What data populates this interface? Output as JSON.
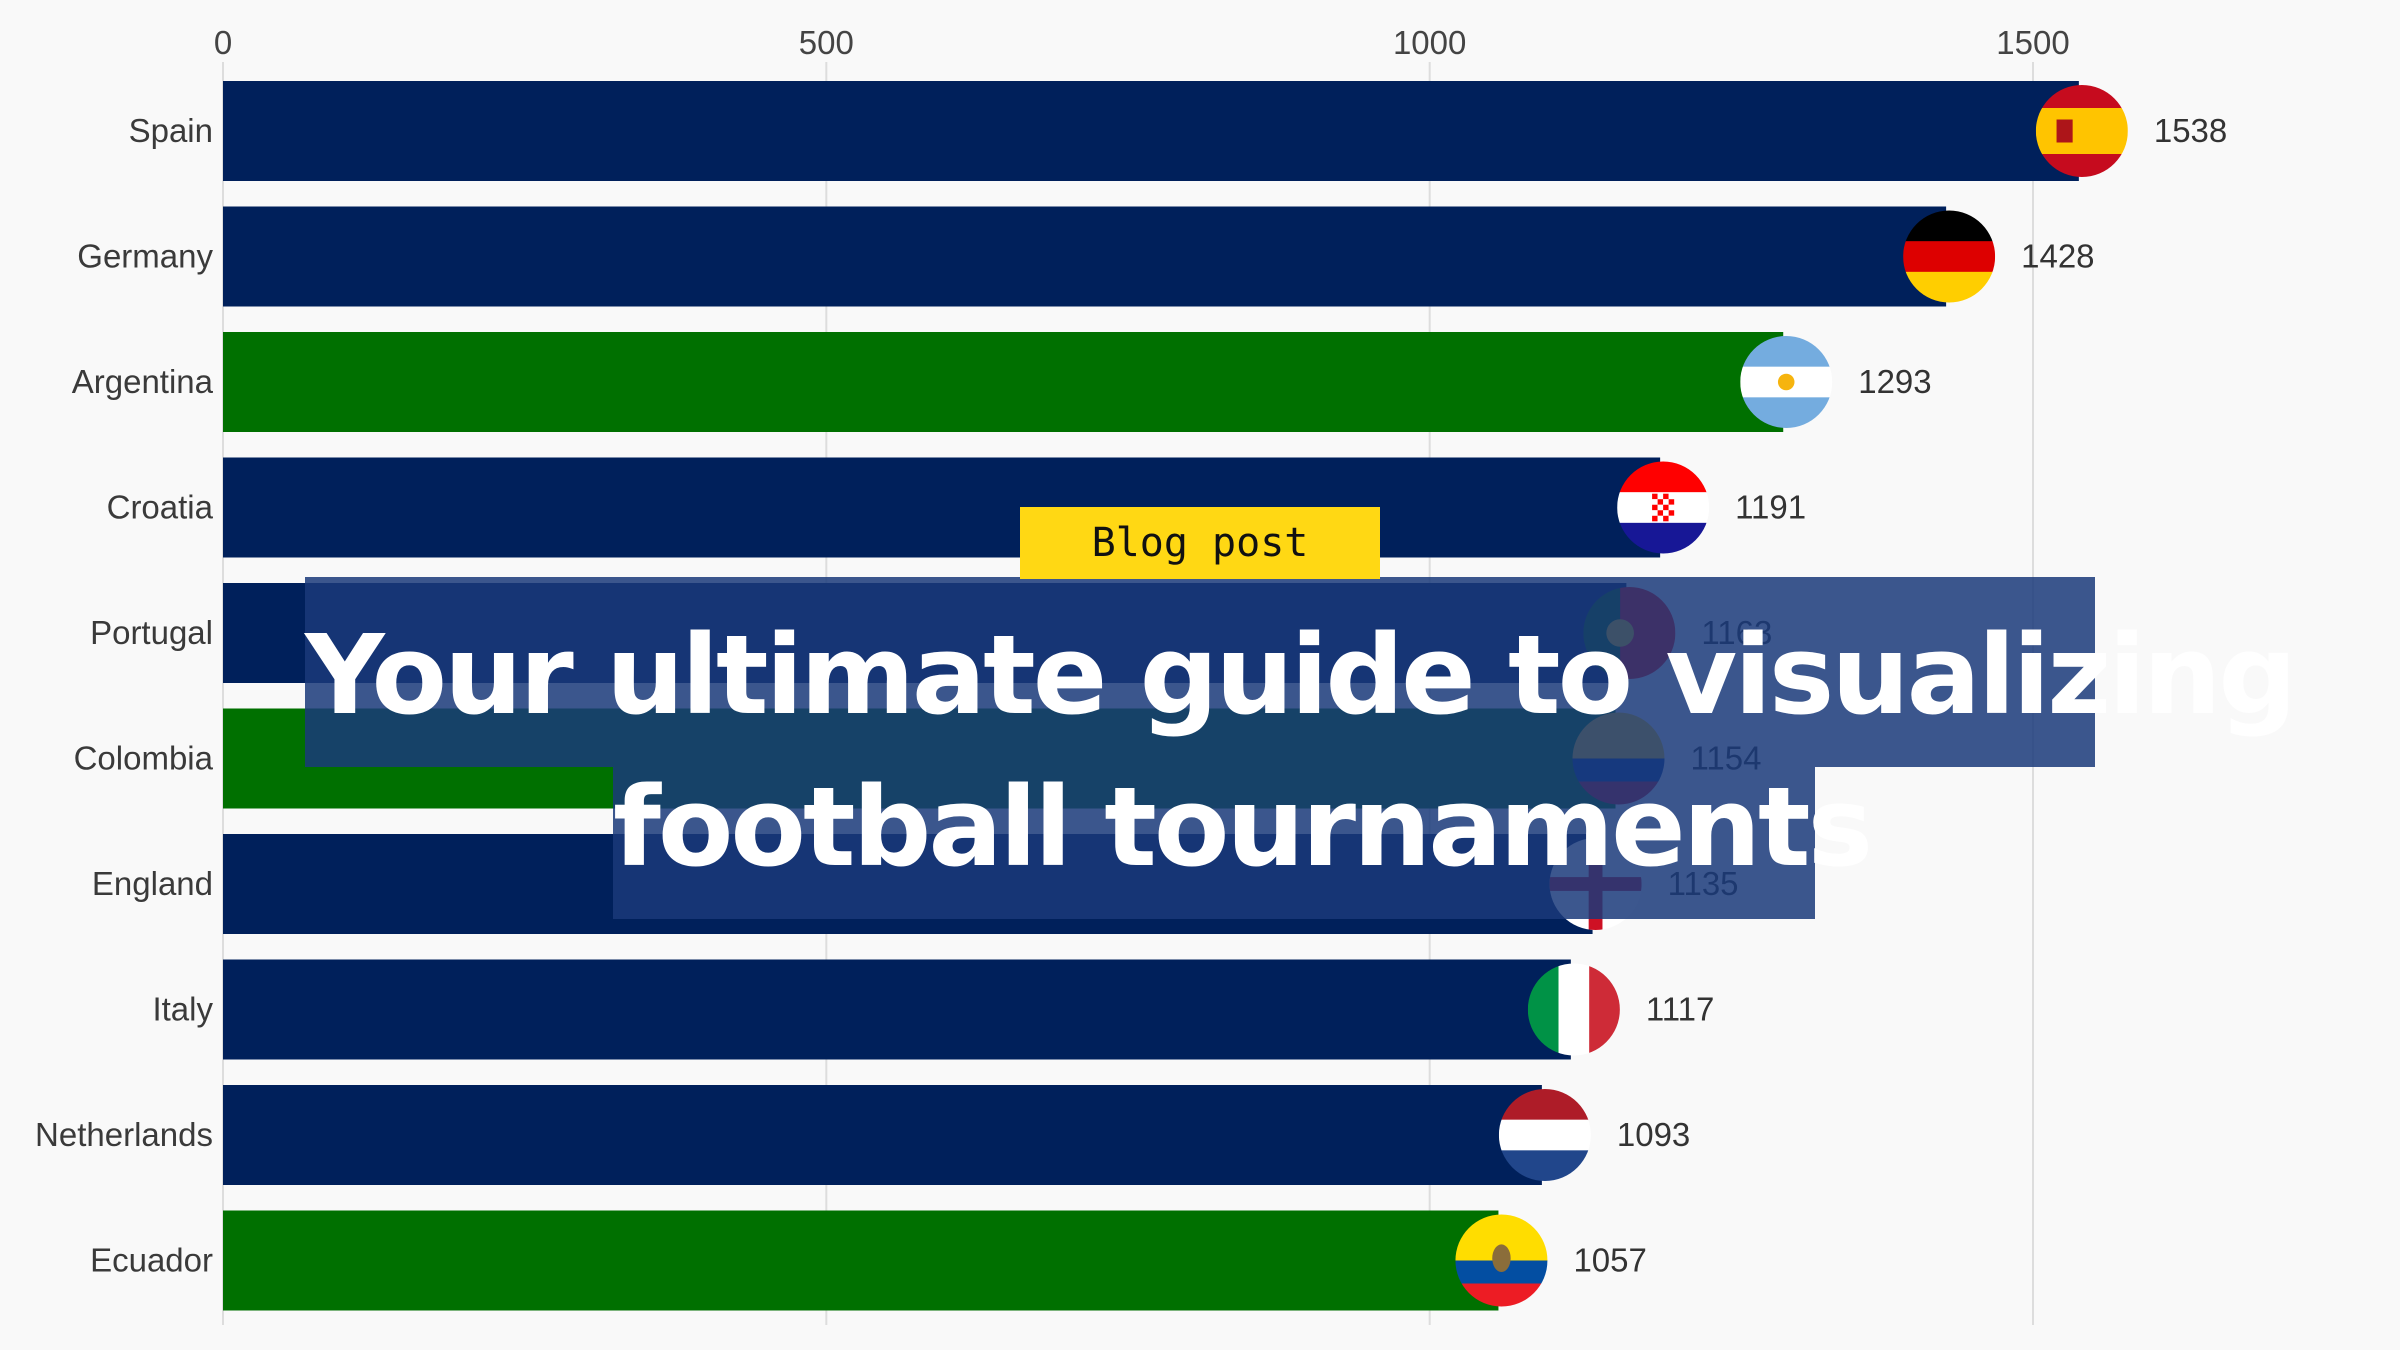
{
  "chart_data": {
    "type": "bar",
    "orientation": "horizontal",
    "categories": [
      "Spain",
      "Germany",
      "Argentina",
      "Croatia",
      "Portugal",
      "Colombia",
      "England",
      "Italy",
      "Netherlands",
      "Ecuador"
    ],
    "values": [
      1538,
      1428,
      1293,
      1191,
      1163,
      1154,
      1135,
      1117,
      1093,
      1057
    ],
    "value_labels": [
      "1538",
      "1428",
      "1293",
      "1191",
      "1163",
      "1154",
      "1135",
      "1117",
      "1093",
      "1057"
    ],
    "bar_colors": [
      "#00205b",
      "#00205b",
      "#007000",
      "#00205b",
      "#00205b",
      "#007000",
      "#00205b",
      "#00205b",
      "#00205b",
      "#007000"
    ],
    "flag_icons": [
      "spain-flag-icon",
      "germany-flag-icon",
      "argentina-flag-icon",
      "croatia-flag-icon",
      "portugal-flag-icon",
      "colombia-flag-icon",
      "england-flag-icon",
      "italy-flag-icon",
      "netherlands-flag-icon",
      "ecuador-flag-icon"
    ],
    "xlim": [
      0,
      1600
    ],
    "xticks": [
      0,
      500,
      1000,
      1500
    ],
    "xtick_labels": [
      "0",
      "500",
      "1000",
      "1500"
    ],
    "axis_position": "top",
    "grid": true
  },
  "overlay": {
    "badge": "Blog post",
    "badge_color": "#ffd814",
    "title_line_1": "Your ultimate guide to visualizing",
    "title_line_2": "football tournaments",
    "band_color": "#1a3a7a"
  }
}
